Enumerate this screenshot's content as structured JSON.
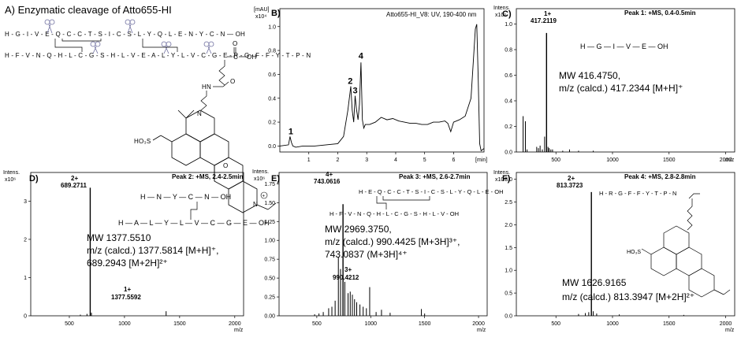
{
  "panelA": {
    "title": "A) Enzymatic cleavage of Atto655-HI",
    "seq1": "H - G - I - V - E - Q - C - C - T - S - I - C - S - L - Y - Q - L - E - N - Y - C - N — OH",
    "seq2": "H - F - V - N - Q - H - L - C - G - S - H - L - V - E - A - L - Y - L - V - C - G - E - R - G - F - F - Y - T - P - N",
    "acid_c": "C",
    "acid_oh": "OH",
    "linker_hn": "HN",
    "linker_o": "O",
    "dye_so3h": "HO₃S",
    "dye_n": "N",
    "dye_o": "O",
    "dye_n2": "N",
    "dye_plus": "+"
  },
  "panelB": {
    "label": "B)",
    "ylabel1": "[mAU]",
    "ylabel2": "x10⁴",
    "title": "Atto655-HI_V8: UV, 190-400 nm",
    "xunit": "[min]"
  },
  "panelC": {
    "label": "C)",
    "y1": "Intens.",
    "y2": "x10⁶",
    "title": "Peak 1: +MS, 0.4-0.5min",
    "peak_charge": "1+",
    "peak_mz": "417.2119",
    "struct": "H — G — I — V — E — OH",
    "mw": "MW 416.4750,",
    "calc": "m/z (calcd.) 417.2344 [M+H]⁺",
    "xunit": "m/z"
  },
  "panelD": {
    "label": "D)",
    "y1": "Intens.",
    "y2": "x10⁶",
    "title": "Peak 2: +MS, 2.4-2.5min",
    "peak_charge": "2+",
    "peak_mz": "689.2711",
    "peak2_charge": "1+",
    "peak2_mz": "1377.5592",
    "struct1": "H — N — Y — C — N — OH",
    "struct2": "H — A — L — Y — L — V — C — G — E — OH",
    "mw": "MW 1377.5510",
    "calc1": "m/z (calcd.) 1377.5814 [M+H]⁺,",
    "calc2": "689.2943 [M+2H]²⁺",
    "xunit": "m/z"
  },
  "panelE": {
    "label": "E)",
    "y1": "Intens.",
    "y2": "x10⁶",
    "title": "Peak 3: +MS, 2.6-2.7min",
    "peak_charge": "4+",
    "peak_mz": "743.0616",
    "peak2_charge": "3+",
    "peak2_mz": "990.4212",
    "struct1": "H - E - Q - C - C - T - S - I - C - S - L - Y - Q - L - E - OH",
    "struct2": "H - F - V - N - Q - H - L - C - G - S - H - L - V - OH",
    "mw": "MW 2969.3750,",
    "calc1": "m/z (calcd.) 990.4425 [M+3H]³⁺,",
    "calc2": "743.0837 (M+3H]⁴⁺",
    "xunit": "m/z"
  },
  "panelF": {
    "label": "F)",
    "y1": "Intens.",
    "y2": "x10⁶",
    "title": "Peak 4: +MS, 2.8-2.8min",
    "peak_charge": "2+",
    "peak_mz": "813.3723",
    "struct": "H - R - G - F - F - Y - T - P - N",
    "mw": "MW 1626.9165",
    "calc": "m/z (calcd.) 813.3947 [M+2H]²⁺",
    "xunit": "m/z"
  },
  "chart_data": [
    {
      "type": "line",
      "id": "B",
      "title": "Atto655-HI_V8: UV, 190-400 nm",
      "xlabel": "[min]",
      "ylabel": "[mAU] x10⁴",
      "xlim": [
        0,
        7.05
      ],
      "ylim": [
        -0.05,
        1.15
      ],
      "xticks": [
        1,
        2,
        3,
        4,
        5,
        6
      ],
      "yticks": [
        0.0,
        0.2,
        0.4,
        0.6,
        0.8,
        1.0
      ],
      "x": [
        0,
        0.3,
        0.35,
        0.4,
        0.45,
        0.55,
        0.8,
        1.2,
        1.6,
        2.0,
        2.2,
        2.35,
        2.45,
        2.5,
        2.55,
        2.6,
        2.65,
        2.7,
        2.75,
        2.8,
        2.85,
        2.9,
        2.95,
        3.1,
        3.3,
        3.5,
        3.7,
        3.9,
        4.1,
        4.3,
        4.5,
        4.7,
        4.9,
        5.1,
        5.3,
        5.5,
        5.7,
        5.8,
        5.9,
        6.0,
        6.2,
        6.4,
        6.6,
        6.75,
        6.8,
        6.85,
        6.9,
        6.95,
        7.0,
        7.05
      ],
      "y": [
        0.0,
        0.01,
        0.08,
        0.03,
        0.0,
        -0.01,
        0.0,
        0.0,
        0.01,
        0.02,
        0.08,
        0.3,
        0.5,
        0.3,
        0.2,
        0.42,
        0.3,
        0.22,
        0.35,
        0.7,
        0.22,
        0.15,
        0.18,
        0.18,
        0.2,
        0.24,
        0.22,
        0.23,
        0.21,
        0.2,
        0.19,
        0.19,
        0.18,
        0.18,
        0.2,
        0.2,
        0.21,
        0.19,
        0.12,
        0.2,
        0.22,
        0.25,
        0.4,
        0.98,
        1.02,
        0.55,
        0.02,
        -0.04,
        -0.03,
        -0.02
      ],
      "annotations": [
        {
          "text": "1",
          "x": 0.38,
          "y": 0.1
        },
        {
          "text": "2",
          "x": 2.43,
          "y": 0.52
        },
        {
          "text": "3",
          "x": 2.6,
          "y": 0.44
        },
        {
          "text": "4",
          "x": 2.8,
          "y": 0.73
        }
      ]
    },
    {
      "type": "bar",
      "id": "C",
      "title": "Peak 1: +MS, 0.4-0.5min",
      "xlabel": "m/z",
      "ylabel": "Intens. x10⁶",
      "xlim": [
        150,
        2080
      ],
      "ylim": [
        0,
        1.12
      ],
      "xticks": [
        500,
        1000,
        1500,
        2000
      ],
      "yticks": [
        0.0,
        0.2,
        0.4,
        0.6,
        0.8,
        1.0
      ],
      "x": [
        210,
        230,
        245,
        330,
        345,
        360,
        380,
        400,
        417,
        430,
        440,
        455,
        470,
        560,
        620,
        700,
        830
      ],
      "y": [
        0.28,
        0.24,
        0.02,
        0.04,
        0.03,
        0.05,
        0.02,
        0.12,
        0.93,
        0.04,
        0.03,
        0.02,
        0.02,
        0.01,
        0.02,
        0.01,
        0.01
      ]
    },
    {
      "type": "bar",
      "id": "D",
      "title": "Peak 2: +MS, 2.4-2.5min",
      "xlabel": "m/z",
      "ylabel": "Intens. x10⁶",
      "xlim": [
        150,
        2080
      ],
      "ylim": [
        0,
        3.75
      ],
      "xticks": [
        500,
        1000,
        1500,
        2000
      ],
      "yticks": [
        0,
        1,
        2,
        3
      ],
      "x": [
        600,
        660,
        689.27,
        700,
        1377.56
      ],
      "y": [
        0.03,
        0.05,
        3.35,
        0.08,
        0.12
      ]
    },
    {
      "type": "bar",
      "id": "E",
      "title": "Peak 3: +MS, 2.6-2.7min",
      "xlabel": "m/z",
      "ylabel": "Intens. x10⁶",
      "xlim": [
        150,
        2080
      ],
      "ylim": [
        0,
        1.9
      ],
      "xticks": [
        500,
        1000,
        1500,
        2000
      ],
      "yticks": [
        0.0,
        0.25,
        0.5,
        0.75,
        1.0,
        1.25,
        1.5,
        1.75
      ],
      "x": [
        480,
        520,
        560,
        610,
        640,
        670,
        700,
        720,
        743.06,
        760,
        790,
        810,
        830,
        850,
        870,
        900,
        930,
        960,
        990.42,
        1050,
        1100,
        1180,
        1470,
        1500
      ],
      "y": [
        0.02,
        0.03,
        0.05,
        0.1,
        0.12,
        0.2,
        0.78,
        0.62,
        1.48,
        0.45,
        0.3,
        0.32,
        0.28,
        0.22,
        0.18,
        0.15,
        0.12,
        0.1,
        0.38,
        0.05,
        0.08,
        0.04,
        0.09,
        0.03
      ]
    },
    {
      "type": "bar",
      "id": "F",
      "title": "Peak 4: +MS, 2.8-2.8min",
      "xlabel": "m/z",
      "ylabel": "Intens. x10⁶",
      "xlim": [
        150,
        2080
      ],
      "ylim": [
        0,
        3.15
      ],
      "xticks": [
        500,
        1000,
        1500,
        2000
      ],
      "yticks": [
        0.0,
        0.5,
        1.0,
        1.5,
        2.0,
        2.5,
        3.0
      ],
      "x": [
        700,
        760,
        790,
        813.37,
        830,
        860,
        1060,
        1630
      ],
      "y": [
        0.04,
        0.06,
        0.08,
        2.72,
        0.1,
        0.05,
        0.03,
        0.02
      ]
    }
  ]
}
